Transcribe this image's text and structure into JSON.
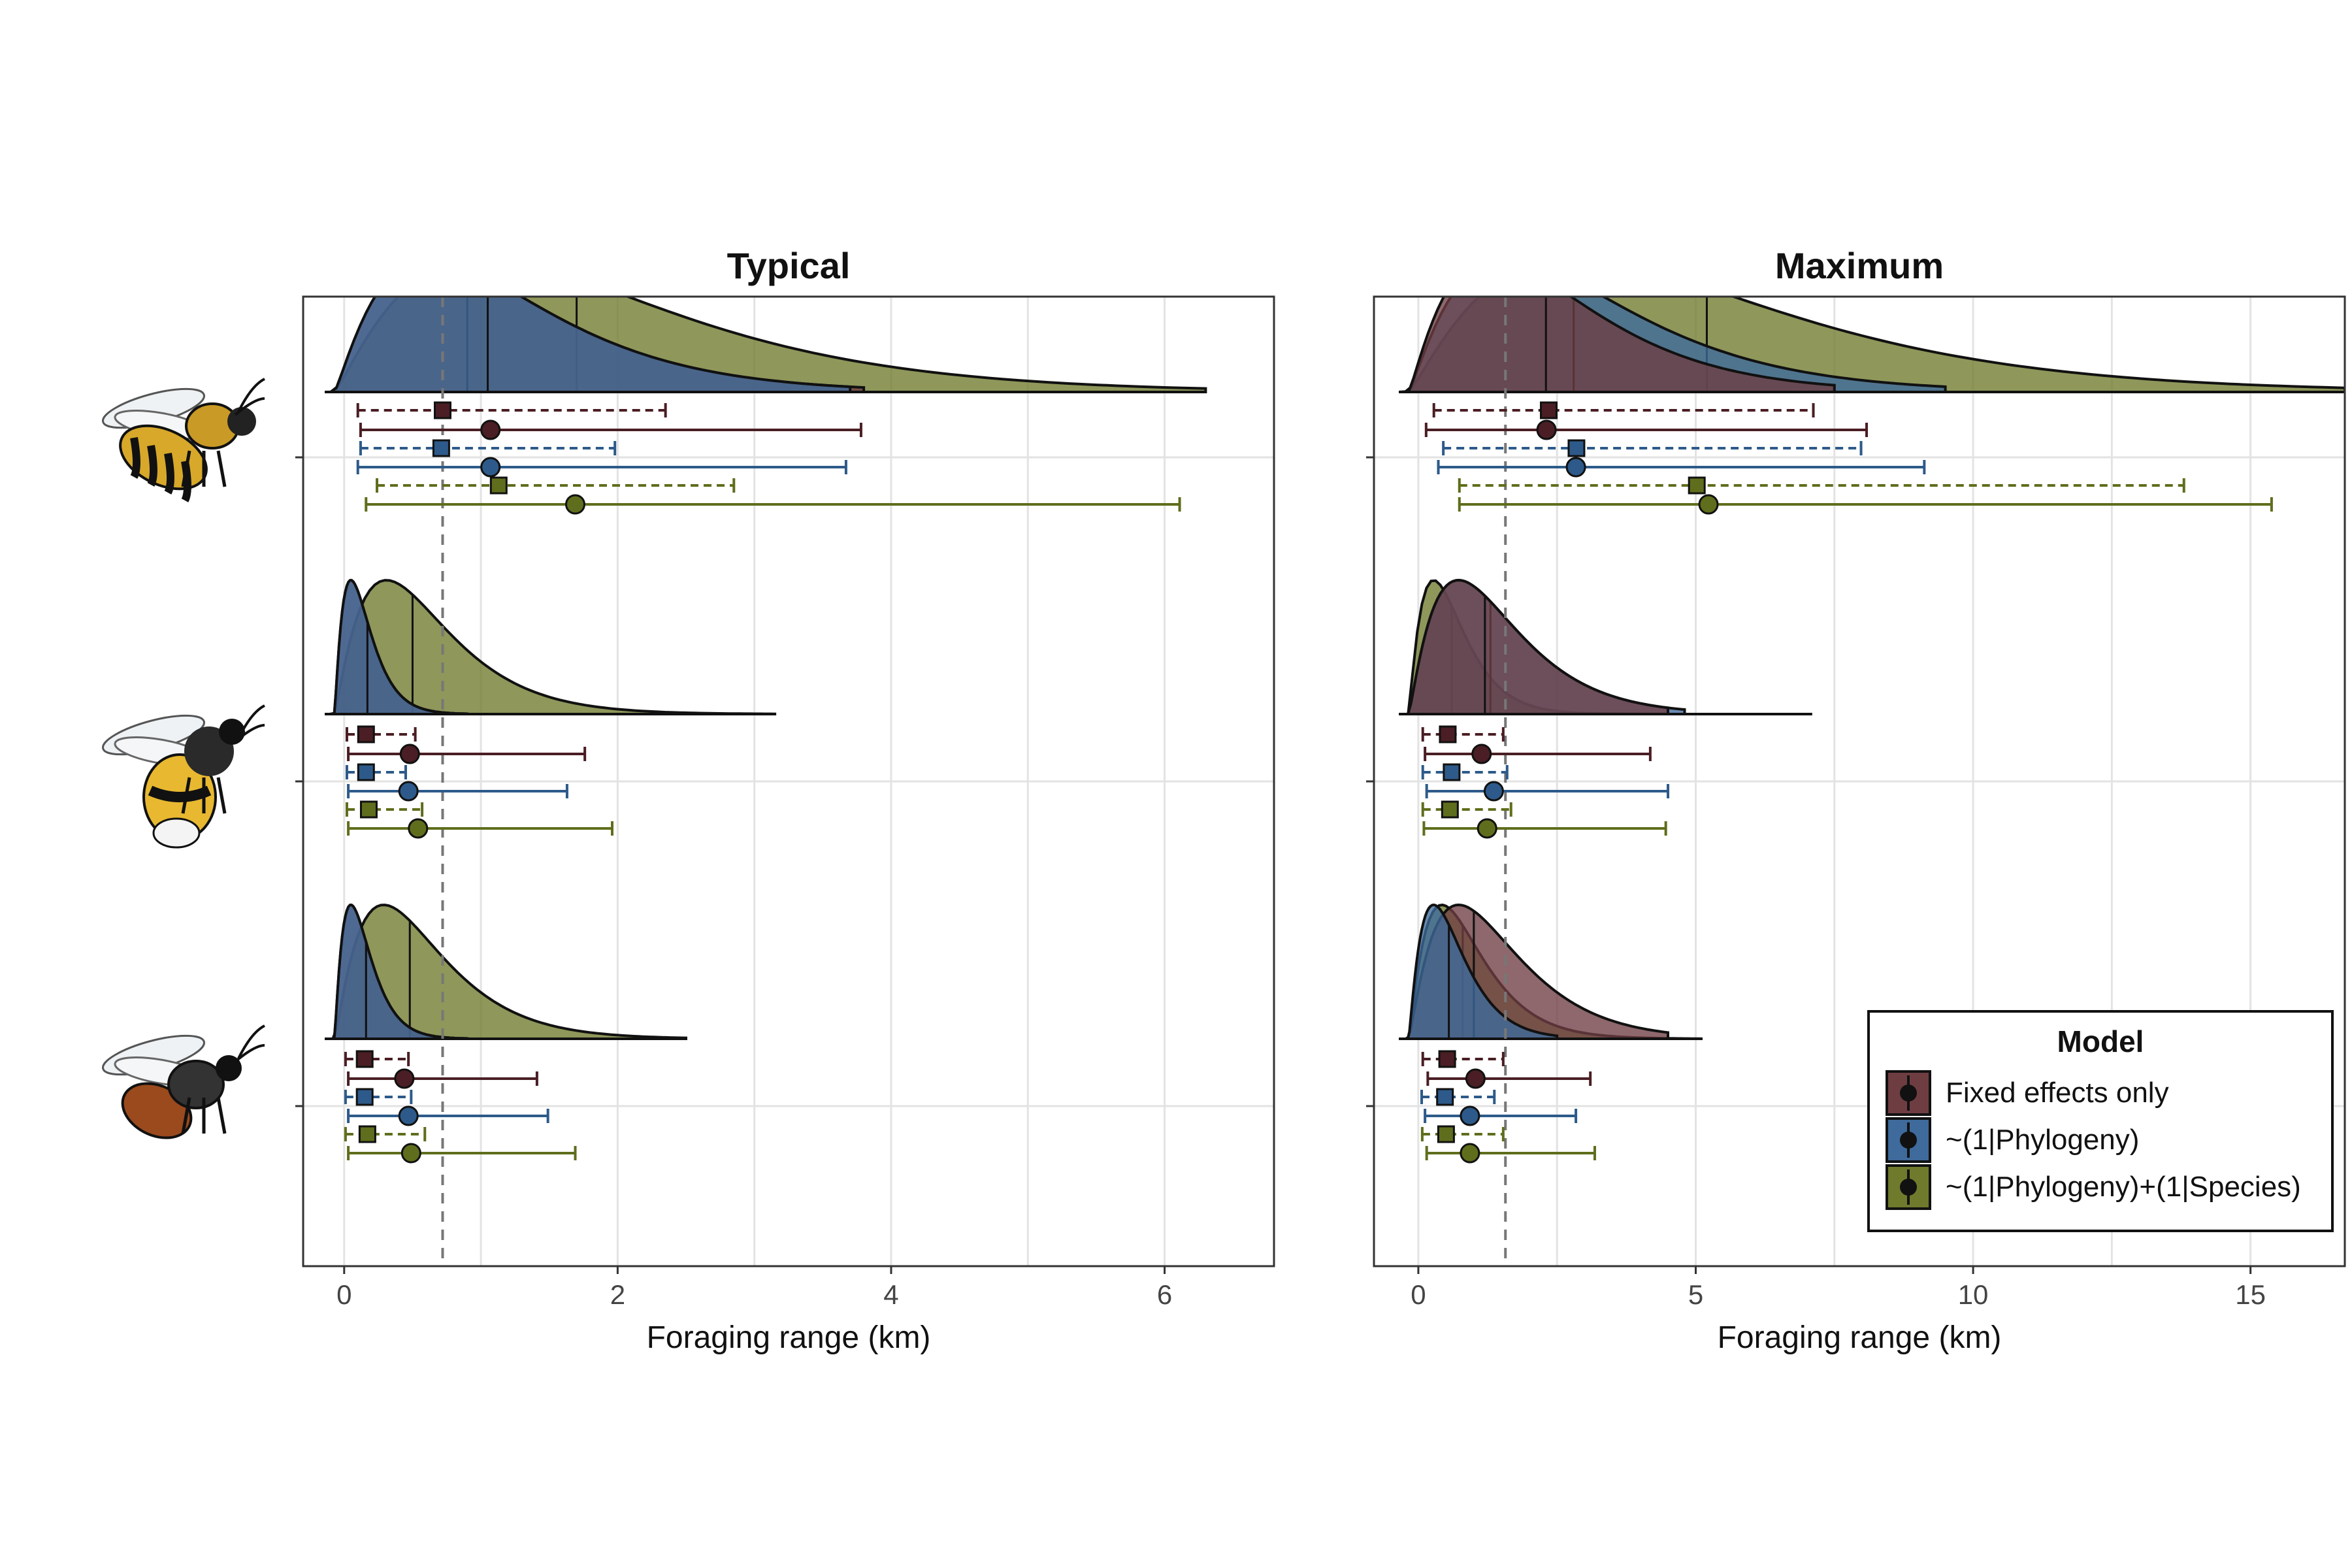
{
  "colors": {
    "fixed": "#4a1e24",
    "fixed_fill": "#6e3d42",
    "phylo": "#2d5a8a",
    "phylo_fill": "#3e6a9c",
    "species": "#5f6e1c",
    "species_fill": "#6f7a2c",
    "grid": "#e3e3e3",
    "vline": "#777777"
  },
  "legend": {
    "title": "Model",
    "items": [
      {
        "label": "Fixed effects only",
        "key": "fixed"
      },
      {
        "label": "~(1|Phylogeny)",
        "key": "phylo"
      },
      {
        "label": "~(1|Phylogeny)+(1|Species)",
        "key": "species"
      }
    ]
  },
  "groups": [
    {
      "icon": "honeybee-icon"
    },
    {
      "icon": "bumblebee-icon"
    },
    {
      "icon": "solitary-bee-icon"
    }
  ],
  "chart_data": [
    {
      "type": "interval-ridgeline",
      "title": "Typical",
      "xlabel": "Foraging range (km)",
      "xlim": [
        -0.3,
        6.8
      ],
      "xticks": [
        0,
        2,
        4,
        6
      ],
      "reference_line": 0.72,
      "groups": [
        {
          "group": 1,
          "densities": [
            {
              "series": "fixed",
              "peak": 0.7,
              "median": 0.9,
              "max": 3.8
            },
            {
              "series": "phylo",
              "peak": 0.7,
              "median": 1.05,
              "max": 3.7
            },
            {
              "series": "species",
              "peak": 1.1,
              "median": 1.7,
              "max": 6.3
            }
          ],
          "estimates": [
            {
              "series": "fixed",
              "shape": "square",
              "style": "dashed",
              "point": 0.72,
              "lo": 0.1,
              "hi": 2.35
            },
            {
              "series": "fixed",
              "shape": "circle",
              "style": "solid",
              "point": 1.07,
              "lo": 0.12,
              "hi": 3.78
            },
            {
              "series": "phylo",
              "shape": "square",
              "style": "dashed",
              "point": 0.71,
              "lo": 0.12,
              "hi": 1.98
            },
            {
              "series": "phylo",
              "shape": "circle",
              "style": "solid",
              "point": 1.07,
              "lo": 0.1,
              "hi": 3.67
            },
            {
              "series": "species",
              "shape": "square",
              "style": "dashed",
              "point": 1.13,
              "lo": 0.24,
              "hi": 2.85
            },
            {
              "series": "species",
              "shape": "circle",
              "style": "solid",
              "point": 1.69,
              "lo": 0.16,
              "hi": 6.11
            }
          ]
        },
        {
          "group": 2,
          "densities": [
            {
              "series": "fixed",
              "peak": 0.12,
              "median": 0.17,
              "max": 0.9
            },
            {
              "series": "phylo",
              "peak": 0.12,
              "median": 0.17,
              "max": 0.9
            },
            {
              "series": "species",
              "peak": 0.38,
              "median": 0.5,
              "max": 3.15
            }
          ],
          "estimates": [
            {
              "series": "fixed",
              "shape": "square",
              "style": "dashed",
              "point": 0.16,
              "lo": 0.02,
              "hi": 0.52
            },
            {
              "series": "fixed",
              "shape": "circle",
              "style": "solid",
              "point": 0.48,
              "lo": 0.03,
              "hi": 1.76
            },
            {
              "series": "phylo",
              "shape": "square",
              "style": "dashed",
              "point": 0.16,
              "lo": 0.02,
              "hi": 0.45
            },
            {
              "series": "phylo",
              "shape": "circle",
              "style": "solid",
              "point": 0.47,
              "lo": 0.03,
              "hi": 1.63
            },
            {
              "series": "species",
              "shape": "square",
              "style": "dashed",
              "point": 0.18,
              "lo": 0.02,
              "hi": 0.57
            },
            {
              "series": "species",
              "shape": "circle",
              "style": "solid",
              "point": 0.54,
              "lo": 0.03,
              "hi": 1.96
            }
          ]
        },
        {
          "group": 3,
          "densities": [
            {
              "series": "fixed",
              "peak": 0.12,
              "median": 0.16,
              "max": 0.9
            },
            {
              "series": "phylo",
              "peak": 0.12,
              "median": 0.16,
              "max": 0.9
            },
            {
              "series": "species",
              "peak": 0.36,
              "median": 0.48,
              "max": 2.5
            }
          ],
          "estimates": [
            {
              "series": "fixed",
              "shape": "square",
              "style": "dashed",
              "point": 0.15,
              "lo": 0.01,
              "hi": 0.47
            },
            {
              "series": "fixed",
              "shape": "circle",
              "style": "solid",
              "point": 0.44,
              "lo": 0.03,
              "hi": 1.41
            },
            {
              "series": "phylo",
              "shape": "square",
              "style": "dashed",
              "point": 0.15,
              "lo": 0.01,
              "hi": 0.49
            },
            {
              "series": "phylo",
              "shape": "circle",
              "style": "solid",
              "point": 0.47,
              "lo": 0.03,
              "hi": 1.49
            },
            {
              "series": "species",
              "shape": "square",
              "style": "dashed",
              "point": 0.17,
              "lo": 0.01,
              "hi": 0.59
            },
            {
              "series": "species",
              "shape": "circle",
              "style": "solid",
              "point": 0.49,
              "lo": 0.03,
              "hi": 1.69
            }
          ]
        }
      ]
    },
    {
      "type": "interval-ridgeline",
      "title": "Maximum",
      "xlabel": "Foraging range (km)",
      "xlim": [
        -0.8,
        16.7
      ],
      "xticks": [
        0,
        5,
        10,
        15
      ],
      "reference_line": 1.57,
      "groups": [
        {
          "group": 1,
          "densities": [
            {
              "series": "fixed",
              "peak": 1.5,
              "median": 2.3,
              "max": 7.5
            },
            {
              "series": "phylo",
              "peak": 1.8,
              "median": 2.8,
              "max": 9.5
            },
            {
              "series": "species",
              "peak": 3.0,
              "median": 5.2,
              "max": 16.7
            }
          ],
          "estimates": [
            {
              "series": "fixed",
              "shape": "square",
              "style": "dashed",
              "point": 2.35,
              "lo": 0.28,
              "hi": 7.12
            },
            {
              "series": "fixed",
              "shape": "circle",
              "style": "solid",
              "point": 2.31,
              "lo": 0.14,
              "hi": 8.08
            },
            {
              "series": "phylo",
              "shape": "square",
              "style": "dashed",
              "point": 2.85,
              "lo": 0.45,
              "hi": 7.98
            },
            {
              "series": "phylo",
              "shape": "circle",
              "style": "solid",
              "point": 2.84,
              "lo": 0.36,
              "hi": 9.12
            },
            {
              "series": "species",
              "shape": "square",
              "style": "dashed",
              "point": 5.02,
              "lo": 0.74,
              "hi": 13.8
            },
            {
              "series": "species",
              "shape": "circle",
              "style": "solid",
              "point": 5.23,
              "lo": 0.74,
              "hi": 15.38
            }
          ]
        },
        {
          "group": 2,
          "densities": [
            {
              "series": "fixed",
              "peak": 0.9,
              "median": 1.2,
              "max": 4.5
            },
            {
              "series": "phylo",
              "peak": 0.9,
              "median": 1.3,
              "max": 4.8
            },
            {
              "series": "species",
              "peak": 0.45,
              "median": 0.6,
              "max": 7.1
            }
          ],
          "estimates": [
            {
              "series": "fixed",
              "shape": "square",
              "style": "dashed",
              "point": 0.53,
              "lo": 0.08,
              "hi": 1.53
            },
            {
              "series": "fixed",
              "shape": "circle",
              "style": "solid",
              "point": 1.14,
              "lo": 0.12,
              "hi": 4.18
            },
            {
              "series": "phylo",
              "shape": "square",
              "style": "dashed",
              "point": 0.6,
              "lo": 0.08,
              "hi": 1.6
            },
            {
              "series": "phylo",
              "shape": "circle",
              "style": "solid",
              "point": 1.36,
              "lo": 0.15,
              "hi": 4.5
            },
            {
              "series": "species",
              "shape": "square",
              "style": "dashed",
              "point": 0.57,
              "lo": 0.08,
              "hi": 1.67
            },
            {
              "series": "species",
              "shape": "circle",
              "style": "solid",
              "point": 1.24,
              "lo": 0.1,
              "hi": 4.46
            }
          ]
        },
        {
          "group": 3,
          "densities": [
            {
              "series": "fixed",
              "peak": 0.9,
              "median": 1.0,
              "max": 4.5
            },
            {
              "series": "phylo",
              "peak": 0.45,
              "median": 0.55,
              "max": 2.5
            },
            {
              "series": "species",
              "peak": 0.6,
              "median": 0.8,
              "max": 5.1
            }
          ],
          "estimates": [
            {
              "series": "fixed",
              "shape": "square",
              "style": "dashed",
              "point": 0.52,
              "lo": 0.08,
              "hi": 1.53
            },
            {
              "series": "fixed",
              "shape": "circle",
              "style": "solid",
              "point": 1.03,
              "lo": 0.17,
              "hi": 3.1
            },
            {
              "series": "phylo",
              "shape": "square",
              "style": "dashed",
              "point": 0.48,
              "lo": 0.06,
              "hi": 1.37
            },
            {
              "series": "phylo",
              "shape": "circle",
              "style": "solid",
              "point": 0.93,
              "lo": 0.12,
              "hi": 2.84
            },
            {
              "series": "species",
              "shape": "square",
              "style": "dashed",
              "point": 0.5,
              "lo": 0.07,
              "hi": 1.53
            },
            {
              "series": "species",
              "shape": "circle",
              "style": "solid",
              "point": 0.93,
              "lo": 0.15,
              "hi": 3.18
            }
          ]
        }
      ]
    }
  ]
}
